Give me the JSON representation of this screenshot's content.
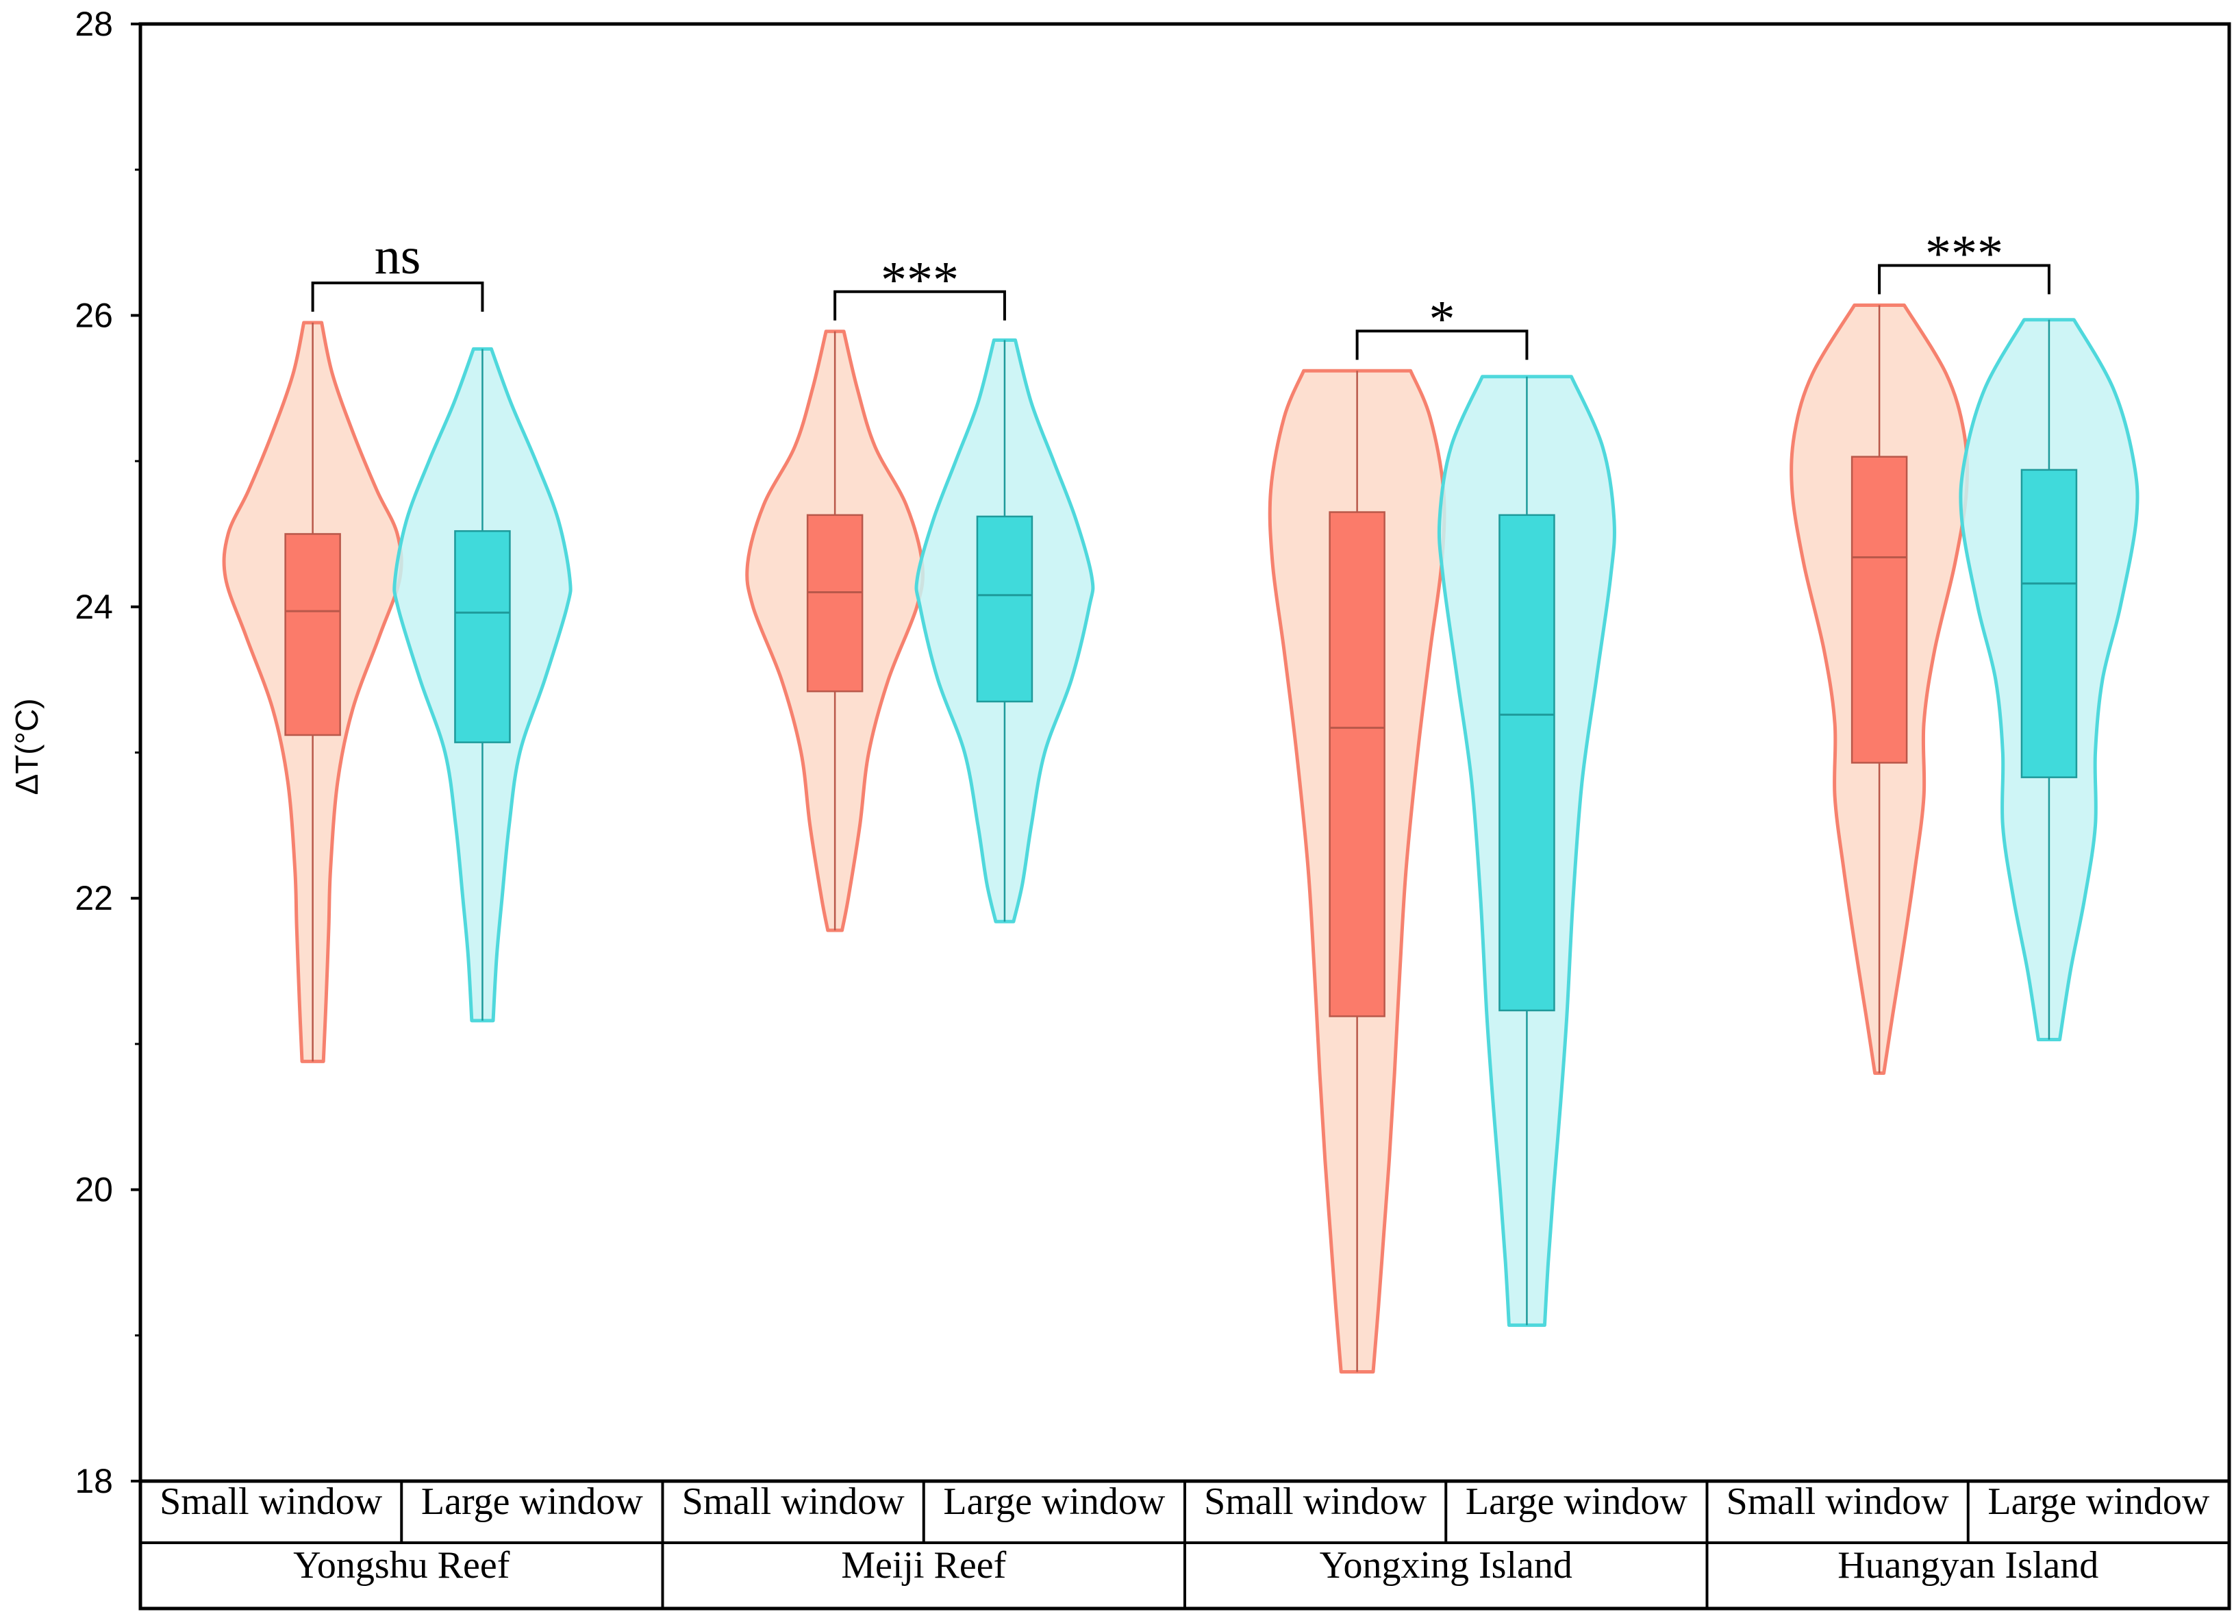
{
  "chart_data": {
    "type": "violin",
    "ylabel": "ΔT(°C)",
    "ylim": [
      18,
      28
    ],
    "yticks": [
      18,
      20,
      22,
      24,
      26,
      28
    ],
    "colors": {
      "small_fill": "#fdd9c8",
      "small_line": "#f6816e",
      "small_box": "#fb7b6a",
      "small_box_edge": "#b9584a",
      "large_fill": "#c6f3f4",
      "large_line": "#4fd8dc",
      "large_box": "#40dadb",
      "large_box_edge": "#1e9a9b"
    },
    "groups": [
      {
        "site": "Yongshu Reef",
        "significance": "ns",
        "series": [
          {
            "window": "Small window",
            "kind": "small",
            "min": 20.88,
            "q1": 23.12,
            "median": 23.97,
            "q3": 24.5,
            "max": 25.95,
            "density": [
              [
                20.88,
                0.12
              ],
              [
                21.3,
                0.15
              ],
              [
                21.8,
                0.18
              ],
              [
                22.2,
                0.2
              ],
              [
                22.8,
                0.28
              ],
              [
                23.3,
                0.45
              ],
              [
                23.8,
                0.75
              ],
              [
                24.2,
                0.98
              ],
              [
                24.5,
                0.95
              ],
              [
                24.8,
                0.72
              ],
              [
                25.2,
                0.45
              ],
              [
                25.6,
                0.22
              ],
              [
                25.95,
                0.1
              ]
            ]
          },
          {
            "window": "Large window",
            "kind": "large",
            "min": 21.16,
            "q1": 23.07,
            "median": 23.96,
            "q3": 24.52,
            "max": 25.77,
            "density": [
              [
                21.16,
                0.12
              ],
              [
                21.6,
                0.16
              ],
              [
                22.0,
                0.22
              ],
              [
                22.5,
                0.3
              ],
              [
                23.0,
                0.42
              ],
              [
                23.5,
                0.7
              ],
              [
                24.0,
                0.95
              ],
              [
                24.2,
                0.98
              ],
              [
                24.6,
                0.85
              ],
              [
                25.0,
                0.6
              ],
              [
                25.4,
                0.32
              ],
              [
                25.77,
                0.1
              ]
            ]
          }
        ]
      },
      {
        "site": "Meiji Reef",
        "significance": "***",
        "series": [
          {
            "window": "Small window",
            "kind": "small",
            "min": 21.78,
            "q1": 23.42,
            "median": 24.1,
            "q3": 24.63,
            "max": 25.89,
            "density": [
              [
                21.78,
                0.08
              ],
              [
                22.0,
                0.15
              ],
              [
                22.5,
                0.28
              ],
              [
                23.0,
                0.38
              ],
              [
                23.5,
                0.6
              ],
              [
                24.0,
                0.92
              ],
              [
                24.3,
                0.98
              ],
              [
                24.7,
                0.8
              ],
              [
                25.1,
                0.45
              ],
              [
                25.5,
                0.25
              ],
              [
                25.89,
                0.1
              ]
            ]
          },
          {
            "window": "Large window",
            "kind": "large",
            "min": 21.84,
            "q1": 23.35,
            "median": 24.08,
            "q3": 24.62,
            "max": 25.83,
            "density": [
              [
                21.84,
                0.1
              ],
              [
                22.1,
                0.2
              ],
              [
                22.5,
                0.3
              ],
              [
                23.0,
                0.45
              ],
              [
                23.5,
                0.75
              ],
              [
                24.0,
                0.95
              ],
              [
                24.2,
                0.98
              ],
              [
                24.6,
                0.8
              ],
              [
                25.0,
                0.55
              ],
              [
                25.4,
                0.3
              ],
              [
                25.83,
                0.12
              ]
            ]
          }
        ]
      },
      {
        "site": "Yongxing Island",
        "significance": "*",
        "series": [
          {
            "window": "Small window",
            "kind": "small",
            "min": 18.75,
            "q1": 21.19,
            "median": 23.17,
            "q3": 24.65,
            "max": 25.62,
            "density": [
              [
                18.75,
                0.18
              ],
              [
                19.2,
                0.24
              ],
              [
                19.7,
                0.3
              ],
              [
                20.2,
                0.36
              ],
              [
                20.8,
                0.42
              ],
              [
                21.5,
                0.48
              ],
              [
                22.2,
                0.55
              ],
              [
                23.0,
                0.68
              ],
              [
                23.7,
                0.82
              ],
              [
                24.3,
                0.95
              ],
              [
                24.8,
                0.97
              ],
              [
                25.3,
                0.82
              ],
              [
                25.62,
                0.6
              ]
            ]
          },
          {
            "window": "Large window",
            "kind": "large",
            "min": 19.07,
            "q1": 21.23,
            "median": 23.26,
            "q3": 24.63,
            "max": 25.58,
            "density": [
              [
                19.07,
                0.2
              ],
              [
                19.5,
                0.24
              ],
              [
                20.0,
                0.3
              ],
              [
                20.6,
                0.38
              ],
              [
                21.2,
                0.45
              ],
              [
                22.0,
                0.52
              ],
              [
                22.8,
                0.62
              ],
              [
                23.5,
                0.78
              ],
              [
                24.2,
                0.94
              ],
              [
                24.6,
                0.98
              ],
              [
                25.1,
                0.85
              ],
              [
                25.58,
                0.5
              ]
            ]
          }
        ]
      },
      {
        "site": "Huangyan Island",
        "significance": "***",
        "series": [
          {
            "window": "Small window",
            "kind": "small",
            "min": 20.8,
            "q1": 22.93,
            "median": 24.34,
            "q3": 25.03,
            "max": 26.07,
            "density": [
              [
                20.8,
                0.05
              ],
              [
                21.2,
                0.15
              ],
              [
                21.7,
                0.28
              ],
              [
                22.2,
                0.4
              ],
              [
                22.7,
                0.5
              ],
              [
                23.2,
                0.5
              ],
              [
                23.7,
                0.62
              ],
              [
                24.3,
                0.85
              ],
              [
                24.8,
                0.98
              ],
              [
                25.2,
                0.95
              ],
              [
                25.6,
                0.75
              ],
              [
                26.07,
                0.28
              ]
            ]
          },
          {
            "window": "Large window",
            "kind": "large",
            "min": 21.03,
            "q1": 22.83,
            "median": 24.16,
            "q3": 24.94,
            "max": 25.97,
            "density": [
              [
                21.03,
                0.12
              ],
              [
                21.5,
                0.24
              ],
              [
                22.0,
                0.4
              ],
              [
                22.5,
                0.52
              ],
              [
                23.0,
                0.52
              ],
              [
                23.5,
                0.6
              ],
              [
                24.0,
                0.8
              ],
              [
                24.6,
                0.98
              ],
              [
                25.0,
                0.95
              ],
              [
                25.5,
                0.72
              ],
              [
                25.97,
                0.28
              ]
            ]
          }
        ]
      }
    ]
  }
}
